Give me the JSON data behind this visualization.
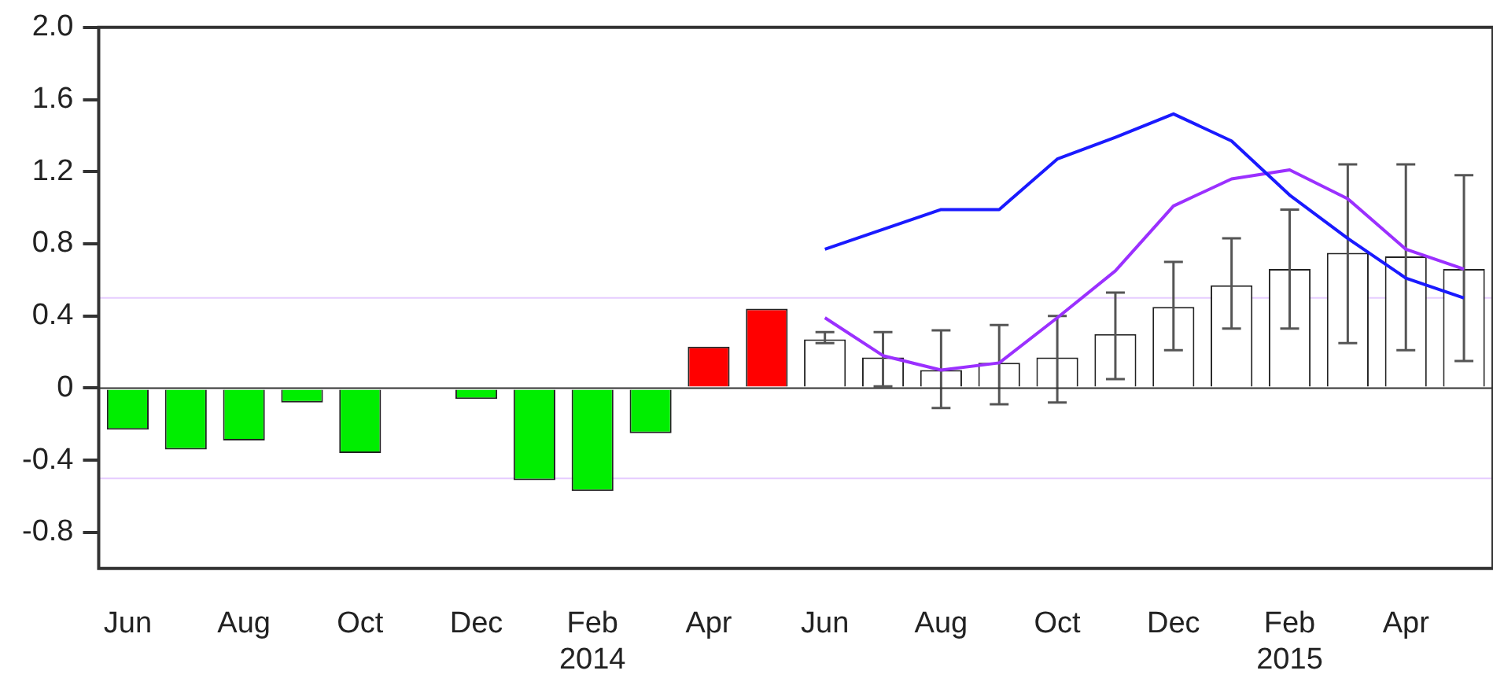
{
  "chart_data": {
    "type": "bar",
    "categories": [
      "Jun",
      null,
      "Aug",
      null,
      "Oct",
      null,
      "Dec",
      null,
      "Feb 2014",
      null,
      "Apr",
      null,
      "Jun",
      null,
      "Aug",
      null,
      "Oct",
      null,
      "Dec",
      null,
      "Feb 2015",
      null,
      "Apr",
      null
    ],
    "series": [
      {
        "colors": [
          "#00ee00",
          "#00ee00",
          "#00ee00",
          "#00ee00",
          "#00ee00",
          "#00ee00",
          "#00ee00",
          "#00ee00",
          "#00ee00",
          "#00ee00",
          "#ff0000",
          "#ff0000",
          null,
          null,
          null,
          null,
          null,
          null,
          null,
          null,
          null,
          null,
          null,
          null
        ],
        "values": [
          -0.23,
          -0.34,
          -0.29,
          -0.08,
          -0.36,
          0.0,
          -0.06,
          -0.51,
          -0.57,
          -0.25,
          0.23,
          0.44,
          null,
          null,
          null,
          null,
          null,
          null,
          null,
          null,
          null,
          null,
          null,
          null
        ]
      },
      {
        "color": "#ffffff",
        "values": [
          null,
          null,
          null,
          null,
          null,
          null,
          null,
          null,
          null,
          null,
          null,
          null,
          0.27,
          0.17,
          0.1,
          0.14,
          0.17,
          0.3,
          0.45,
          0.57,
          0.66,
          0.75,
          0.73,
          0.66
        ],
        "errors": [
          null,
          null,
          null,
          null,
          null,
          null,
          null,
          null,
          null,
          null,
          null,
          null,
          [
            0.25,
            0.31
          ],
          [
            0.01,
            0.31
          ],
          [
            -0.11,
            0.32
          ],
          [
            -0.09,
            0.35
          ],
          [
            -0.08,
            0.4
          ],
          [
            0.05,
            0.53
          ],
          [
            0.21,
            0.7
          ],
          [
            0.33,
            0.83
          ],
          [
            0.33,
            0.99
          ],
          [
            0.25,
            1.24
          ],
          [
            0.21,
            1.24
          ],
          [
            0.15,
            1.18
          ]
        ]
      },
      {
        "type": "line",
        "color": "#1a1aff",
        "values": [
          null,
          null,
          null,
          null,
          null,
          null,
          null,
          null,
          null,
          null,
          null,
          null,
          0.77,
          0.88,
          0.99,
          0.99,
          1.27,
          1.39,
          1.52,
          1.37,
          1.07,
          0.83,
          0.61,
          0.5
        ]
      },
      {
        "type": "line",
        "color": "#9b30ff",
        "values": [
          null,
          null,
          null,
          null,
          null,
          null,
          null,
          null,
          null,
          null,
          null,
          null,
          0.39,
          0.18,
          0.1,
          0.14,
          0.39,
          0.65,
          1.01,
          1.16,
          1.21,
          1.05,
          0.77,
          0.66
        ]
      }
    ],
    "ylim": [
      -1.0,
      2.0
    ],
    "yticks": [
      -0.8,
      -0.4,
      0,
      0.4,
      0.8,
      1.2,
      1.6,
      {
        "value": 2,
        "label": "2.0"
      }
    ],
    "ref_lines": [
      {
        "axis": "y",
        "value": 0.5,
        "color": "#e6ccff"
      },
      {
        "axis": "y",
        "value": -0.5,
        "color": "#e6ccff"
      }
    ]
  }
}
